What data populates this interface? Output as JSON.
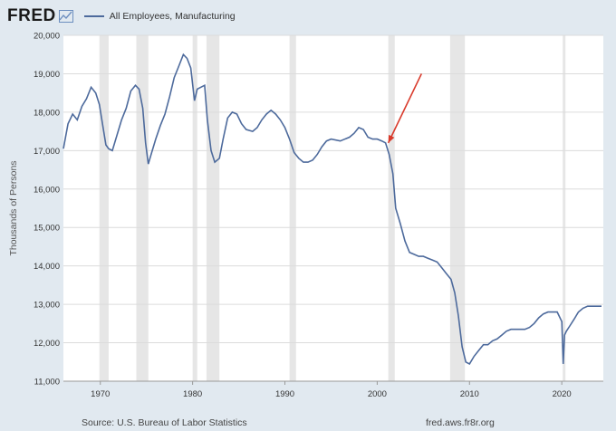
{
  "header": {
    "logo": "FRED",
    "logo_icon": "chart-mark-icon",
    "series_legend": "All Employees, Manufacturing",
    "series_color": "#4d6a9c"
  },
  "footer": {
    "source": "Source: U.S. Bureau of Labor Statistics",
    "site": "fred.aws.fr8r.org"
  },
  "chart_data": {
    "type": "line",
    "title": "",
    "xlabel": "",
    "ylabel": "Thousands of Persons",
    "xlim": [
      1966,
      2024.5
    ],
    "ylim": [
      11000,
      20000
    ],
    "yticks": [
      {
        "value": 11000,
        "label": "11,000"
      },
      {
        "value": 12000,
        "label": "12,000"
      },
      {
        "value": 13000,
        "label": "13,000"
      },
      {
        "value": 14000,
        "label": "14,000"
      },
      {
        "value": 15000,
        "label": "15,000"
      },
      {
        "value": 16000,
        "label": "16,000"
      },
      {
        "value": 17000,
        "label": "17,000"
      },
      {
        "value": 18000,
        "label": "18,000"
      },
      {
        "value": 19000,
        "label": "19,000"
      },
      {
        "value": 20000,
        "label": "20,000"
      }
    ],
    "xticks": [
      {
        "value": 1970,
        "label": "1970"
      },
      {
        "value": 1980,
        "label": "1980"
      },
      {
        "value": 1990,
        "label": "1990"
      },
      {
        "value": 2000,
        "label": "2000"
      },
      {
        "value": 2010,
        "label": "2010"
      },
      {
        "value": 2020,
        "label": "2020"
      }
    ],
    "grid": true,
    "recessions": [
      [
        1969.9,
        1970.9
      ],
      [
        1973.9,
        1975.2
      ],
      [
        1980.0,
        1980.5
      ],
      [
        1981.5,
        1982.9
      ],
      [
        1990.5,
        1991.2
      ],
      [
        2001.2,
        2001.9
      ],
      [
        2007.9,
        2009.5
      ],
      [
        2020.1,
        2020.4
      ]
    ],
    "recession_color": "#e6e6e6",
    "annotation": {
      "type": "arrow",
      "from": [
        2004.8,
        19000
      ],
      "to": [
        2001.2,
        17200
      ],
      "color": "#d93a2b"
    },
    "series": [
      {
        "color": "#4d6a9c",
        "x": [
          1966.0,
          1966.5,
          1967.0,
          1967.5,
          1968.0,
          1968.5,
          1969.0,
          1969.5,
          1969.9,
          1970.3,
          1970.6,
          1970.9,
          1971.3,
          1971.8,
          1972.3,
          1972.8,
          1973.3,
          1973.8,
          1974.2,
          1974.6,
          1974.9,
          1975.2,
          1975.5,
          1976.0,
          1976.5,
          1977.0,
          1977.5,
          1978.0,
          1978.5,
          1979.0,
          1979.4,
          1979.8,
          1980.2,
          1980.5,
          1980.9,
          1981.3,
          1981.6,
          1982.0,
          1982.4,
          1982.9,
          1983.3,
          1983.8,
          1984.3,
          1984.8,
          1985.3,
          1985.8,
          1986.5,
          1987.0,
          1987.5,
          1988.0,
          1988.5,
          1989.0,
          1989.5,
          1990.0,
          1990.5,
          1991.0,
          1991.5,
          1992.0,
          1992.5,
          1993.0,
          1993.5,
          1994.0,
          1994.5,
          1995.0,
          1996.0,
          1997.0,
          1997.5,
          1998.0,
          1998.5,
          1999.0,
          1999.5,
          2000.0,
          2000.5,
          2000.9,
          2001.3,
          2001.7,
          2002.0,
          2002.5,
          2003.0,
          2003.5,
          2004.0,
          2004.5,
          2005.0,
          2005.5,
          2006.0,
          2006.5,
          2007.0,
          2007.5,
          2008.0,
          2008.4,
          2008.8,
          2009.2,
          2009.6,
          2010.0,
          2010.5,
          2011.0,
          2011.5,
          2012.0,
          2012.5,
          2013.0,
          2013.5,
          2014.0,
          2014.5,
          2015.0,
          2015.5,
          2016.0,
          2016.5,
          2017.0,
          2017.5,
          2018.0,
          2018.5,
          2019.0,
          2019.5,
          2020.0,
          2020.15,
          2020.3,
          2020.5,
          2020.9,
          2021.3,
          2021.8,
          2022.3,
          2022.8,
          2023.3,
          2023.8,
          2024.3
        ],
        "values": [
          17050,
          17700,
          17950,
          17800,
          18150,
          18350,
          18650,
          18500,
          18200,
          17600,
          17150,
          17050,
          17000,
          17400,
          17800,
          18100,
          18550,
          18700,
          18600,
          18100,
          17200,
          16650,
          16900,
          17300,
          17650,
          17950,
          18400,
          18900,
          19200,
          19500,
          19400,
          19150,
          18300,
          18600,
          18650,
          18700,
          17800,
          17000,
          16700,
          16800,
          17300,
          17850,
          18000,
          17950,
          17700,
          17550,
          17500,
          17600,
          17800,
          17950,
          18050,
          17950,
          17800,
          17600,
          17300,
          16950,
          16800,
          16700,
          16700,
          16750,
          16900,
          17100,
          17250,
          17300,
          17250,
          17350,
          17450,
          17600,
          17550,
          17350,
          17300,
          17300,
          17250,
          17200,
          16900,
          16400,
          15500,
          15100,
          14650,
          14350,
          14300,
          14250,
          14250,
          14200,
          14150,
          14100,
          13950,
          13800,
          13650,
          13300,
          12700,
          11900,
          11500,
          11450,
          11650,
          11800,
          11950,
          11950,
          12050,
          12100,
          12200,
          12300,
          12350,
          12350,
          12350,
          12350,
          12400,
          12500,
          12650,
          12750,
          12800,
          12800,
          12800,
          12550,
          11450,
          12200,
          12300,
          12450,
          12600,
          12800,
          12900,
          12950,
          12950,
          12950,
          12950
        ]
      }
    ]
  }
}
